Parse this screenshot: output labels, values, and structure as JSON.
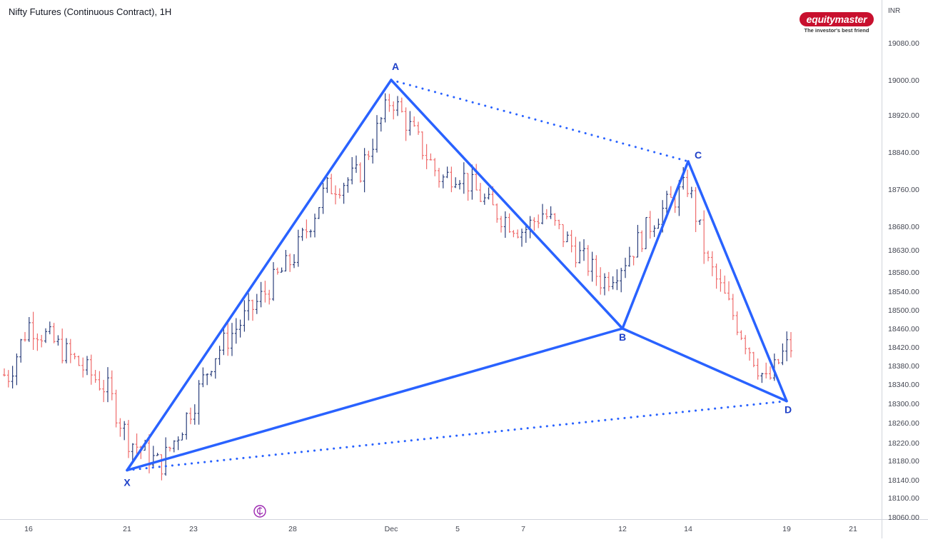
{
  "title": "Nifty Futures (Continuous Contract), 1H",
  "logo": {
    "brand": "equitymaster",
    "tagline": "The investor's best friend"
  },
  "currency": "INR",
  "colors": {
    "up": "#2b3f7c",
    "down": "#ef6c6c",
    "pattern": "#2962ff",
    "axis": "#434651",
    "border": "#d1d4dc"
  },
  "icons": {
    "event_marker": "dividend-icon"
  },
  "chart_data": {
    "type": "ohlc",
    "timeframe": "1H",
    "ylim": [
      18050,
      19130
    ],
    "y_ticks": [
      18060,
      18100,
      18140,
      18180,
      18220,
      18260,
      18300,
      18340,
      18380,
      18420,
      18460,
      18500,
      18540,
      18580,
      18630,
      18680,
      18760,
      18840,
      18920,
      19000,
      19080
    ],
    "y_tick_labels": [
      "18060.00",
      "18100.00",
      "18140.00",
      "18180.00",
      "18220.00",
      "18260.00",
      "18300.00",
      "18340.00",
      "18380.00",
      "18420.00",
      "18460.00",
      "18500.00",
      "18540.00",
      "18580.00",
      "18630.00",
      "18680.00",
      "18760.00",
      "18840.00",
      "18920.00",
      "19000.00",
      "19080.00"
    ],
    "x_ticks": [
      {
        "label": "16",
        "date": "2023-11-16"
      },
      {
        "label": "21",
        "date": "2023-11-21"
      },
      {
        "label": "23",
        "date": "2023-11-23"
      },
      {
        "label": "28",
        "date": "2023-11-28"
      },
      {
        "label": "Dec",
        "date": "2023-12-01"
      },
      {
        "label": "5",
        "date": "2023-12-05"
      },
      {
        "label": "7",
        "date": "2023-12-07"
      },
      {
        "label": "12",
        "date": "2023-12-12"
      },
      {
        "label": "14",
        "date": "2023-12-14"
      },
      {
        "label": "19",
        "date": "2023-12-19"
      },
      {
        "label": "21",
        "date": "2023-12-21"
      }
    ],
    "price_path": [
      {
        "date": "2023-11-15",
        "price": 18360
      },
      {
        "date": "2023-11-16",
        "price": 18470
      },
      {
        "date": "2023-11-17",
        "price": 18440
      },
      {
        "date": "2023-11-20",
        "price": 18330
      },
      {
        "date": "2023-11-21",
        "price": 18230
      },
      {
        "date": "2023-11-22",
        "price": 18170
      },
      {
        "date": "2023-11-23",
        "price": 18300
      },
      {
        "date": "2023-11-24",
        "price": 18400
      },
      {
        "date": "2023-11-28",
        "price": 18610
      },
      {
        "date": "2023-11-29",
        "price": 18760
      },
      {
        "date": "2023-11-30",
        "price": 18790
      },
      {
        "date": "2023-12-01",
        "price": 18960
      },
      {
        "date": "2023-12-04",
        "price": 18780
      },
      {
        "date": "2023-12-05",
        "price": 18800
      },
      {
        "date": "2023-12-06",
        "price": 18720
      },
      {
        "date": "2023-12-07",
        "price": 18670
      },
      {
        "date": "2023-12-08",
        "price": 18710
      },
      {
        "date": "2023-12-11",
        "price": 18560
      },
      {
        "date": "2023-12-12",
        "price": 18600
      },
      {
        "date": "2023-12-13",
        "price": 18700
      },
      {
        "date": "2023-12-14",
        "price": 18770
      },
      {
        "date": "2023-12-15",
        "price": 18600
      },
      {
        "date": "2023-12-18",
        "price": 18340
      },
      {
        "date": "2023-12-19",
        "price": 18420
      }
    ],
    "harmonic_pattern": {
      "points": [
        {
          "label": "X",
          "date": "2023-11-21",
          "price": 18160
        },
        {
          "label": "A",
          "date": "2023-12-01",
          "price": 19000
        },
        {
          "label": "B",
          "date": "2023-12-12",
          "price": 18460
        },
        {
          "label": "C",
          "date": "2023-12-14",
          "price": 18820
        },
        {
          "label": "D",
          "date": "2023-12-19",
          "price": 18305
        }
      ],
      "solid_legs": [
        [
          "X",
          "A"
        ],
        [
          "A",
          "B"
        ],
        [
          "B",
          "C"
        ],
        [
          "C",
          "D"
        ],
        [
          "X",
          "B"
        ],
        [
          "B",
          "D"
        ]
      ],
      "dotted_legs": [
        [
          "A",
          "C"
        ],
        [
          "X",
          "D"
        ]
      ]
    }
  }
}
